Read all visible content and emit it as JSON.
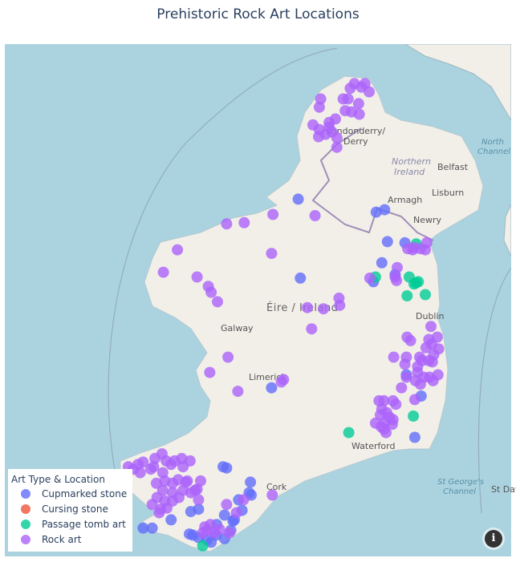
{
  "title": "Prehistoric Rock Art Locations",
  "map": {
    "style": "open-street-map",
    "colors": {
      "sea": "#aad3df",
      "land": "#f2efe9"
    },
    "place_labels": {
      "derry": "Londonderry/",
      "derry2": "Derry",
      "northern_ireland": "Northern",
      "northern_ireland2": "Ireland",
      "belfast": "Belfast",
      "lisburn": "Lisburn",
      "armagh": "Armagh",
      "newry": "Newry",
      "ireland": "Éire / Ireland",
      "dublin": "Dublin",
      "galway": "Galway",
      "limerick": "Limerick",
      "waterford": "Waterford",
      "cork": "Cork",
      "north_channel": "North",
      "north_channel2": "Channel",
      "st_georges": "St George's",
      "st_georges2": "Channel",
      "st_davids": "St Davi"
    },
    "info_icon": "info-icon"
  },
  "legend": {
    "title": "Art Type & Location",
    "items": [
      {
        "label": "Cupmarked stone",
        "color": "#636efa"
      },
      {
        "label": "Cursing stone",
        "color": "#EF553B"
      },
      {
        "label": "Passage tomb art",
        "color": "#00cc96"
      },
      {
        "label": "Rock art",
        "color": "#ab63fa"
      }
    ]
  },
  "chart_data": {
    "type": "scatter",
    "title": "Prehistoric Rock Art Locations",
    "legend_title": "Art Type & Location",
    "legend_position": "bottom-left",
    "series": [
      {
        "name": "Cupmarked stone",
        "color": "#636efa",
        "points": [
          [
            54.34,
            -8.15
          ],
          [
            53.67,
            -8.12
          ],
          [
            54.23,
            -7.04
          ],
          [
            54.25,
            -6.92
          ],
          [
            53.98,
            -6.88
          ],
          [
            53.97,
            -6.63
          ],
          [
            53.8,
            -6.96
          ],
          [
            53.64,
            -7.08
          ],
          [
            53.7,
            -6.77
          ],
          [
            52.74,
            -8.53
          ],
          [
            52.85,
            -6.61
          ],
          [
            52.67,
            -6.4
          ],
          [
            52.32,
            -6.49
          ],
          [
            51.55,
            -10.36
          ],
          [
            51.55,
            -10.23
          ],
          [
            51.62,
            -9.96
          ],
          [
            51.69,
            -9.68
          ],
          [
            51.71,
            -9.57
          ],
          [
            52.07,
            -9.22
          ],
          [
            52.06,
            -9.17
          ],
          [
            51.94,
            -8.83
          ],
          [
            51.85,
            -8.85
          ],
          [
            51.83,
            -8.82
          ],
          [
            51.79,
            -9.0
          ],
          [
            51.66,
            -9.2
          ],
          [
            51.62,
            -9.06
          ],
          [
            51.7,
            -8.95
          ],
          [
            51.49,
            -9.65
          ],
          [
            51.47,
            -9.57
          ],
          [
            51.45,
            -9.45
          ],
          [
            51.43,
            -9.39
          ],
          [
            51.49,
            -9.32
          ],
          [
            51.46,
            -9.2
          ],
          [
            51.53,
            -9.11
          ],
          [
            51.61,
            -9.08
          ],
          [
            51.58,
            -9.31
          ],
          [
            51.5,
            -9.7
          ]
        ]
      },
      {
        "name": "Cursing stone",
        "color": "#EF553B",
        "points": []
      },
      {
        "name": "Passage tomb art",
        "color": "#00cc96",
        "points": [
          [
            53.96,
            -6.47
          ],
          [
            53.68,
            -7.05
          ],
          [
            53.68,
            -6.57
          ],
          [
            53.63,
            -6.47
          ],
          [
            53.62,
            -6.5
          ],
          [
            53.64,
            -6.44
          ],
          [
            53.52,
            -6.6
          ],
          [
            53.53,
            -6.34
          ],
          [
            52.5,
            -6.51
          ],
          [
            52.36,
            -7.43
          ],
          [
            51.4,
            -9.51
          ]
        ]
      },
      {
        "name": "Rock art",
        "color": "#ab63fa",
        "points": [
          [
            55.19,
            -7.83
          ],
          [
            55.12,
            -7.85
          ],
          [
            55.19,
            -7.51
          ],
          [
            55.28,
            -7.41
          ],
          [
            55.32,
            -7.35
          ],
          [
            55.29,
            -7.25
          ],
          [
            55.32,
            -7.2
          ],
          [
            55.25,
            -7.14
          ],
          [
            55.15,
            -7.29
          ],
          [
            55.09,
            -7.48
          ],
          [
            55.08,
            -7.39
          ],
          [
            55.06,
            -7.28
          ],
          [
            55.02,
            -7.62
          ],
          [
            54.99,
            -7.71
          ],
          [
            54.97,
            -7.94
          ],
          [
            54.93,
            -7.85
          ],
          [
            54.95,
            -7.71
          ],
          [
            54.91,
            -7.67
          ],
          [
            54.86,
            -7.6
          ],
          [
            54.78,
            -7.6
          ],
          [
            54.87,
            -7.86
          ],
          [
            54.89,
            -7.76
          ],
          [
            55.19,
            -7.44
          ],
          [
            54.21,
            -8.51
          ],
          [
            54.13,
            -9.17
          ],
          [
            54.14,
            -8.92
          ],
          [
            53.91,
            -9.87
          ],
          [
            53.72,
            -10.07
          ],
          [
            53.68,
            -9.59
          ],
          [
            53.6,
            -9.43
          ],
          [
            53.55,
            -9.39
          ],
          [
            53.47,
            -9.3
          ],
          [
            53.88,
            -8.53
          ],
          [
            54.2,
            -7.91
          ],
          [
            53.41,
            -7.79
          ],
          [
            53.42,
            -8.02
          ],
          [
            53.5,
            -7.57
          ],
          [
            53.44,
            -7.56
          ],
          [
            53.24,
            -7.96
          ],
          [
            53.0,
            -9.15
          ],
          [
            52.87,
            -9.41
          ],
          [
            52.79,
            -8.39
          ],
          [
            52.81,
            -8.36
          ],
          [
            52.71,
            -9.01
          ],
          [
            53.97,
            -6.32
          ],
          [
            53.92,
            -6.59
          ],
          [
            53.93,
            -6.5
          ],
          [
            53.92,
            -6.41
          ],
          [
            53.91,
            -6.34
          ],
          [
            53.91,
            -6.52
          ],
          [
            53.76,
            -6.74
          ],
          [
            53.67,
            -7.13
          ],
          [
            53.68,
            -6.77
          ],
          [
            53.65,
            -6.75
          ],
          [
            53.26,
            -6.26
          ],
          [
            53.17,
            -6.6
          ],
          [
            53.14,
            -6.55
          ],
          [
            53.15,
            -6.29
          ],
          [
            53.17,
            -6.17
          ],
          [
            53.11,
            -6.25
          ],
          [
            53.07,
            -6.15
          ],
          [
            53.08,
            -6.33
          ],
          [
            53.02,
            -6.22
          ],
          [
            52.97,
            -6.29
          ],
          [
            52.96,
            -6.24
          ],
          [
            53.0,
            -6.42
          ],
          [
            52.97,
            -6.39
          ],
          [
            53.0,
            -6.79
          ],
          [
            53.0,
            -6.61
          ],
          [
            52.94,
            -6.63
          ],
          [
            52.83,
            -6.61
          ],
          [
            52.87,
            -6.45
          ],
          [
            52.8,
            -6.48
          ],
          [
            52.77,
            -6.41
          ],
          [
            52.83,
            -6.28
          ],
          [
            52.8,
            -6.23
          ],
          [
            52.85,
            -6.16
          ],
          [
            52.83,
            -6.36
          ],
          [
            52.92,
            -6.45
          ],
          [
            52.64,
            -6.49
          ],
          [
            52.63,
            -6.93
          ],
          [
            52.56,
            -6.96
          ],
          [
            52.63,
            -6.8
          ],
          [
            52.6,
            -6.76
          ],
          [
            52.53,
            -6.89
          ],
          [
            52.49,
            -6.85
          ],
          [
            52.51,
            -6.98
          ],
          [
            52.45,
            -6.91
          ],
          [
            52.44,
            -7.05
          ],
          [
            52.39,
            -6.93
          ],
          [
            52.47,
            -6.8
          ],
          [
            52.43,
            -6.81
          ],
          [
            52.41,
            -6.97
          ],
          [
            52.36,
            -6.9
          ],
          [
            52.63,
            -7.0
          ],
          [
            52.74,
            -6.68
          ],
          [
            52.09,
            -10.43
          ],
          [
            52.11,
            -10.36
          ],
          [
            52.14,
            -10.19
          ],
          [
            52.18,
            -10.09
          ],
          [
            52.12,
            -10.03
          ],
          [
            52.09,
            -9.96
          ],
          [
            52.12,
            -9.91
          ],
          [
            52.14,
            -9.81
          ],
          [
            52.12,
            -9.69
          ],
          [
            52.05,
            -10.5
          ],
          [
            52.02,
            -10.4
          ],
          [
            52.05,
            -10.25
          ],
          [
            52.02,
            -10.08
          ],
          [
            52.07,
            -10.21
          ],
          [
            52.07,
            -9.79
          ],
          [
            52.07,
            -10.57
          ],
          [
            51.93,
            -10.17
          ],
          [
            51.95,
            -10.05
          ],
          [
            51.93,
            -9.94
          ],
          [
            51.96,
            -9.86
          ],
          [
            51.94,
            -9.75
          ],
          [
            51.87,
            -9.79
          ],
          [
            51.85,
            -9.94
          ],
          [
            51.87,
            -10.08
          ],
          [
            51.81,
            -10.16
          ],
          [
            51.75,
            -10.23
          ],
          [
            51.78,
            -10.05
          ],
          [
            51.78,
            -9.94
          ],
          [
            51.81,
            -9.85
          ],
          [
            51.85,
            -9.68
          ],
          [
            51.87,
            -9.62
          ],
          [
            51.71,
            -10.11
          ],
          [
            51.72,
            -10.02
          ],
          [
            51.68,
            -10.13
          ],
          [
            51.95,
            -9.73
          ],
          [
            51.95,
            -9.54
          ],
          [
            51.88,
            -9.59
          ],
          [
            51.79,
            -9.57
          ],
          [
            51.79,
            -8.93
          ],
          [
            51.75,
            -9.17
          ],
          [
            51.83,
            -8.52
          ],
          [
            51.56,
            -9.48
          ],
          [
            51.53,
            -9.45
          ],
          [
            51.58,
            -9.4
          ],
          [
            51.51,
            -9.51
          ],
          [
            51.51,
            -9.35
          ],
          [
            51.51,
            -9.13
          ],
          [
            51.54,
            -9.27
          ],
          [
            51.68,
            -9.03
          ]
        ]
      }
    ]
  }
}
